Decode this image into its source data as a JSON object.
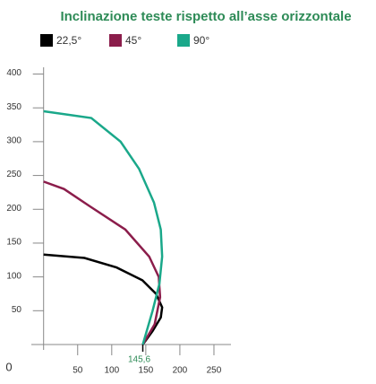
{
  "chart_data": {
    "type": "line",
    "title": "Inclinazione teste rispetto all’asse orizzontale",
    "series": [
      {
        "name": "22,5°",
        "color": "#000000",
        "x": [
          145.6,
          160,
          172,
          174,
          165,
          145,
          107,
          60,
          0
        ],
        "values": [
          0,
          20,
          40,
          55,
          75,
          95,
          114,
          128,
          133
        ]
      },
      {
        "name": "45°",
        "color": "#8b1d4b",
        "x": [
          145.6,
          163,
          171,
          169,
          155,
          120,
          67,
          30,
          0
        ],
        "values": [
          0,
          30,
          70,
          100,
          130,
          170,
          205,
          230,
          241
        ]
      },
      {
        "name": "90°",
        "color": "#1aa88a",
        "x": [
          145.6,
          160,
          170,
          174,
          172,
          162,
          140,
          113,
          70,
          0
        ],
        "values": [
          0,
          50,
          90,
          130,
          170,
          210,
          260,
          300,
          335,
          345
        ]
      }
    ],
    "xlim": [
      -18,
      275
    ],
    "xticks": [
      50,
      100,
      150,
      200,
      250
    ],
    "ylim": [
      0,
      410
    ],
    "yticks": [
      50,
      100,
      150,
      200,
      250,
      300,
      350,
      400
    ],
    "origin_label": "0",
    "annotations": [
      {
        "x": 145.6,
        "label": "145,6"
      }
    ]
  }
}
